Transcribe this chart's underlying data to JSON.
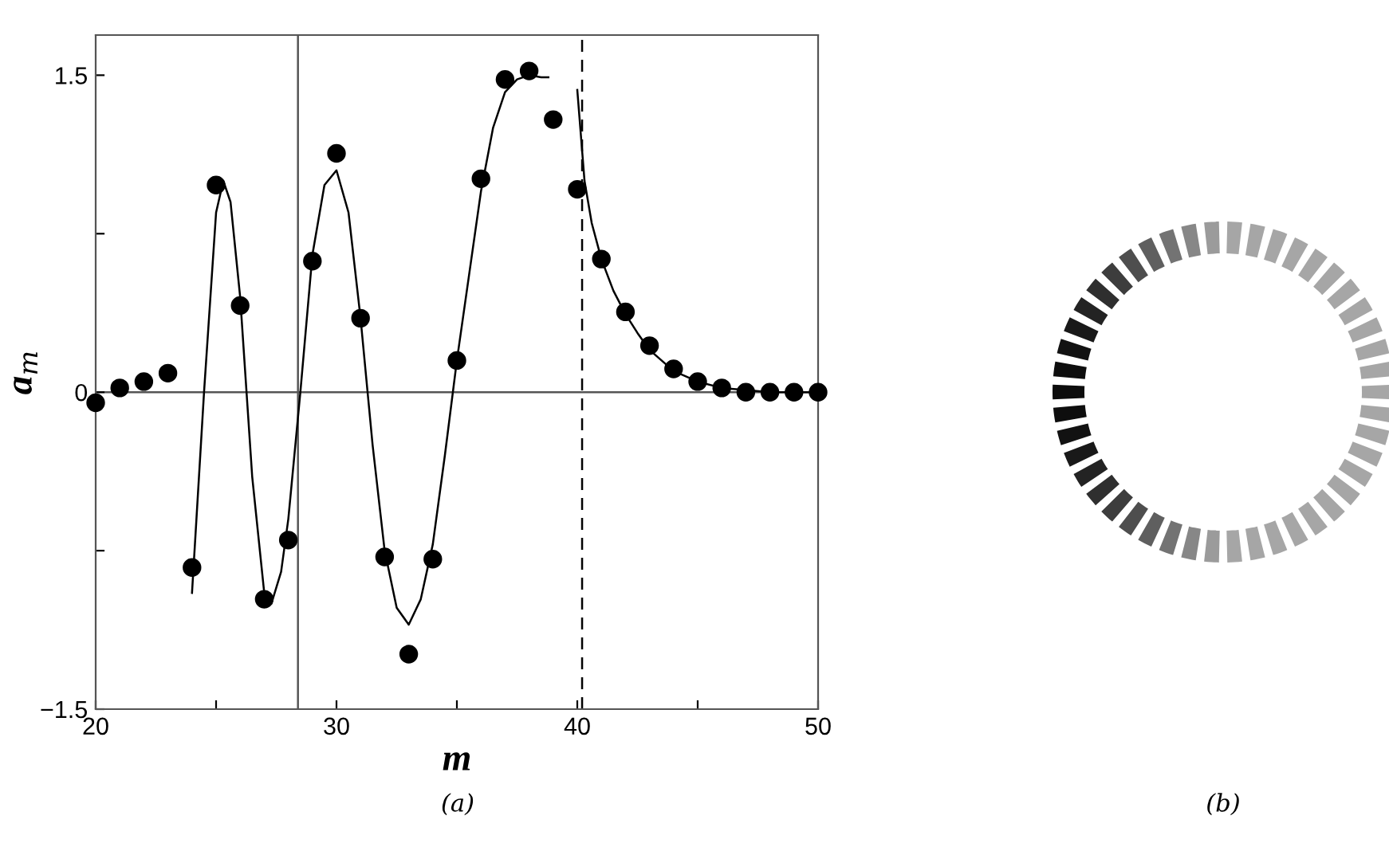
{
  "chart_data": {
    "type": "scatter",
    "xlabel": "m",
    "ylabel": "a$_{m}$",
    "x": [
      20,
      21,
      22,
      23,
      24,
      25,
      26,
      27,
      28,
      29,
      30,
      31,
      32,
      33,
      34,
      35,
      36,
      37,
      38,
      39,
      40,
      41,
      42,
      43,
      44,
      45,
      46,
      47,
      48,
      49,
      50
    ],
    "series": [
      {
        "color": "#000000",
        "marker": "circle",
        "values": [
          -0.05,
          0.02,
          0.05,
          0.09,
          -0.83,
          0.98,
          0.41,
          -0.98,
          -0.7,
          0.62,
          1.13,
          0.35,
          -0.78,
          -1.24,
          -0.79,
          0.15,
          1.01,
          1.48,
          1.52,
          1.29,
          0.96,
          0.63,
          0.38,
          0.22,
          0.11,
          0.05,
          0.02,
          0.0,
          0.0,
          0.0,
          0.0
        ]
      },
      {
        "type": "line",
        "color": "#000000",
        "marker": "none",
        "line_style": "solid",
        "x": [
          24.0,
          24.5,
          25.0,
          25.3,
          25.6,
          26.0,
          26.5,
          27.0,
          27.3,
          27.7,
          28.0,
          28.5,
          29.0,
          29.5,
          30.0,
          30.5,
          31.0,
          31.5,
          32.0,
          32.5,
          33.0,
          33.5,
          34.0,
          34.5,
          35.0,
          35.5,
          36.0,
          36.5,
          37.0,
          37.5,
          38.0,
          38.5,
          38.8
        ],
        "values": [
          -0.95,
          0.0,
          0.85,
          1.0,
          0.9,
          0.45,
          -0.4,
          -0.95,
          -1.0,
          -0.85,
          -0.6,
          0.0,
          0.65,
          0.98,
          1.05,
          0.85,
          0.35,
          -0.25,
          -0.75,
          -1.02,
          -1.1,
          -0.98,
          -0.72,
          -0.3,
          0.15,
          0.55,
          0.95,
          1.25,
          1.42,
          1.48,
          1.5,
          1.49,
          1.49
        ]
      },
      {
        "type": "line",
        "color": "#000000",
        "marker": "none",
        "line_style": "solid",
        "x": [
          40.0,
          40.3,
          40.6,
          41.0,
          41.5,
          42.0,
          42.5,
          43.0,
          44.0,
          45.0,
          46.0,
          47.0,
          48.0,
          50.0
        ],
        "values": [
          1.43,
          1.0,
          0.8,
          0.63,
          0.48,
          0.37,
          0.28,
          0.2,
          0.1,
          0.05,
          0.02,
          0.01,
          0.0,
          0.0
        ]
      }
    ],
    "xlim": [
      20,
      50
    ],
    "ylim": [
      -1.5,
      1.69
    ],
    "xticks": [
      20,
      {
        "value": 25,
        "label": null
      },
      30,
      {
        "value": 35,
        "label": null
      },
      40,
      {
        "value": 45,
        "label": null
      },
      50
    ],
    "yticks": [
      {
        "value": -1.5,
        "label": "−1.5"
      },
      {
        "value": -0.75,
        "label": null
      },
      0,
      {
        "value": 0.75,
        "label": null
      },
      1.5
    ],
    "ref_lines": [
      {
        "axis": "y",
        "value": 0,
        "color": "#555555",
        "line_style": "solid"
      },
      {
        "axis": "x",
        "value": 28.4,
        "color": "#555555",
        "line_style": "solid"
      },
      {
        "axis": "x",
        "value": 40.2,
        "color": "#000000",
        "line_style": "dashed"
      }
    ],
    "grid": false,
    "legend": false,
    "annotations": [
      "(a)",
      "(b)"
    ]
  }
}
